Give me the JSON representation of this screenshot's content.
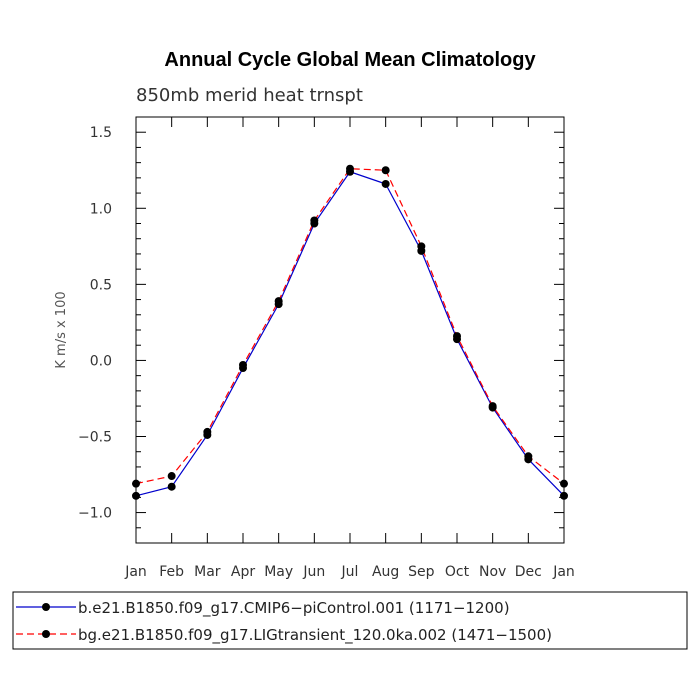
{
  "chart_data": {
    "type": "line",
    "title": "Annual Cycle Global Mean Climatology",
    "subtitle": "850mb merid heat trnspt",
    "ylabel": "K m/s x 100",
    "xlabel": "",
    "categories": [
      "Jan",
      "Feb",
      "Mar",
      "Apr",
      "May",
      "Jun",
      "Jul",
      "Aug",
      "Sep",
      "Oct",
      "Nov",
      "Dec",
      "Jan"
    ],
    "ylim": [
      -1.2,
      1.6
    ],
    "yticks": [
      -1.0,
      -0.5,
      0.0,
      0.5,
      1.0,
      1.5
    ],
    "ytick_labels": [
      "−1.0",
      "−0.5",
      "0.0",
      "0.5",
      "1.0",
      "1.5"
    ],
    "grid": false,
    "legend_position": "bottom",
    "series": [
      {
        "name": "b.e21.B1850.f09_g17.CMIP6−piControl.001 (1171−1200)",
        "color": "#0000cc",
        "dash": "solid",
        "values": [
          -0.89,
          -0.83,
          -0.49,
          -0.05,
          0.37,
          0.9,
          1.24,
          1.16,
          0.72,
          0.14,
          -0.31,
          -0.65,
          -0.89
        ]
      },
      {
        "name": "bg.e21.B1850.f09_g17.LIGtransient_120.0ka.002 (1471−1500)",
        "color": "#ff0000",
        "dash": "dashed",
        "values": [
          -0.81,
          -0.76,
          -0.47,
          -0.03,
          0.39,
          0.92,
          1.26,
          1.25,
          0.75,
          0.16,
          -0.3,
          -0.63,
          -0.81
        ]
      }
    ]
  }
}
